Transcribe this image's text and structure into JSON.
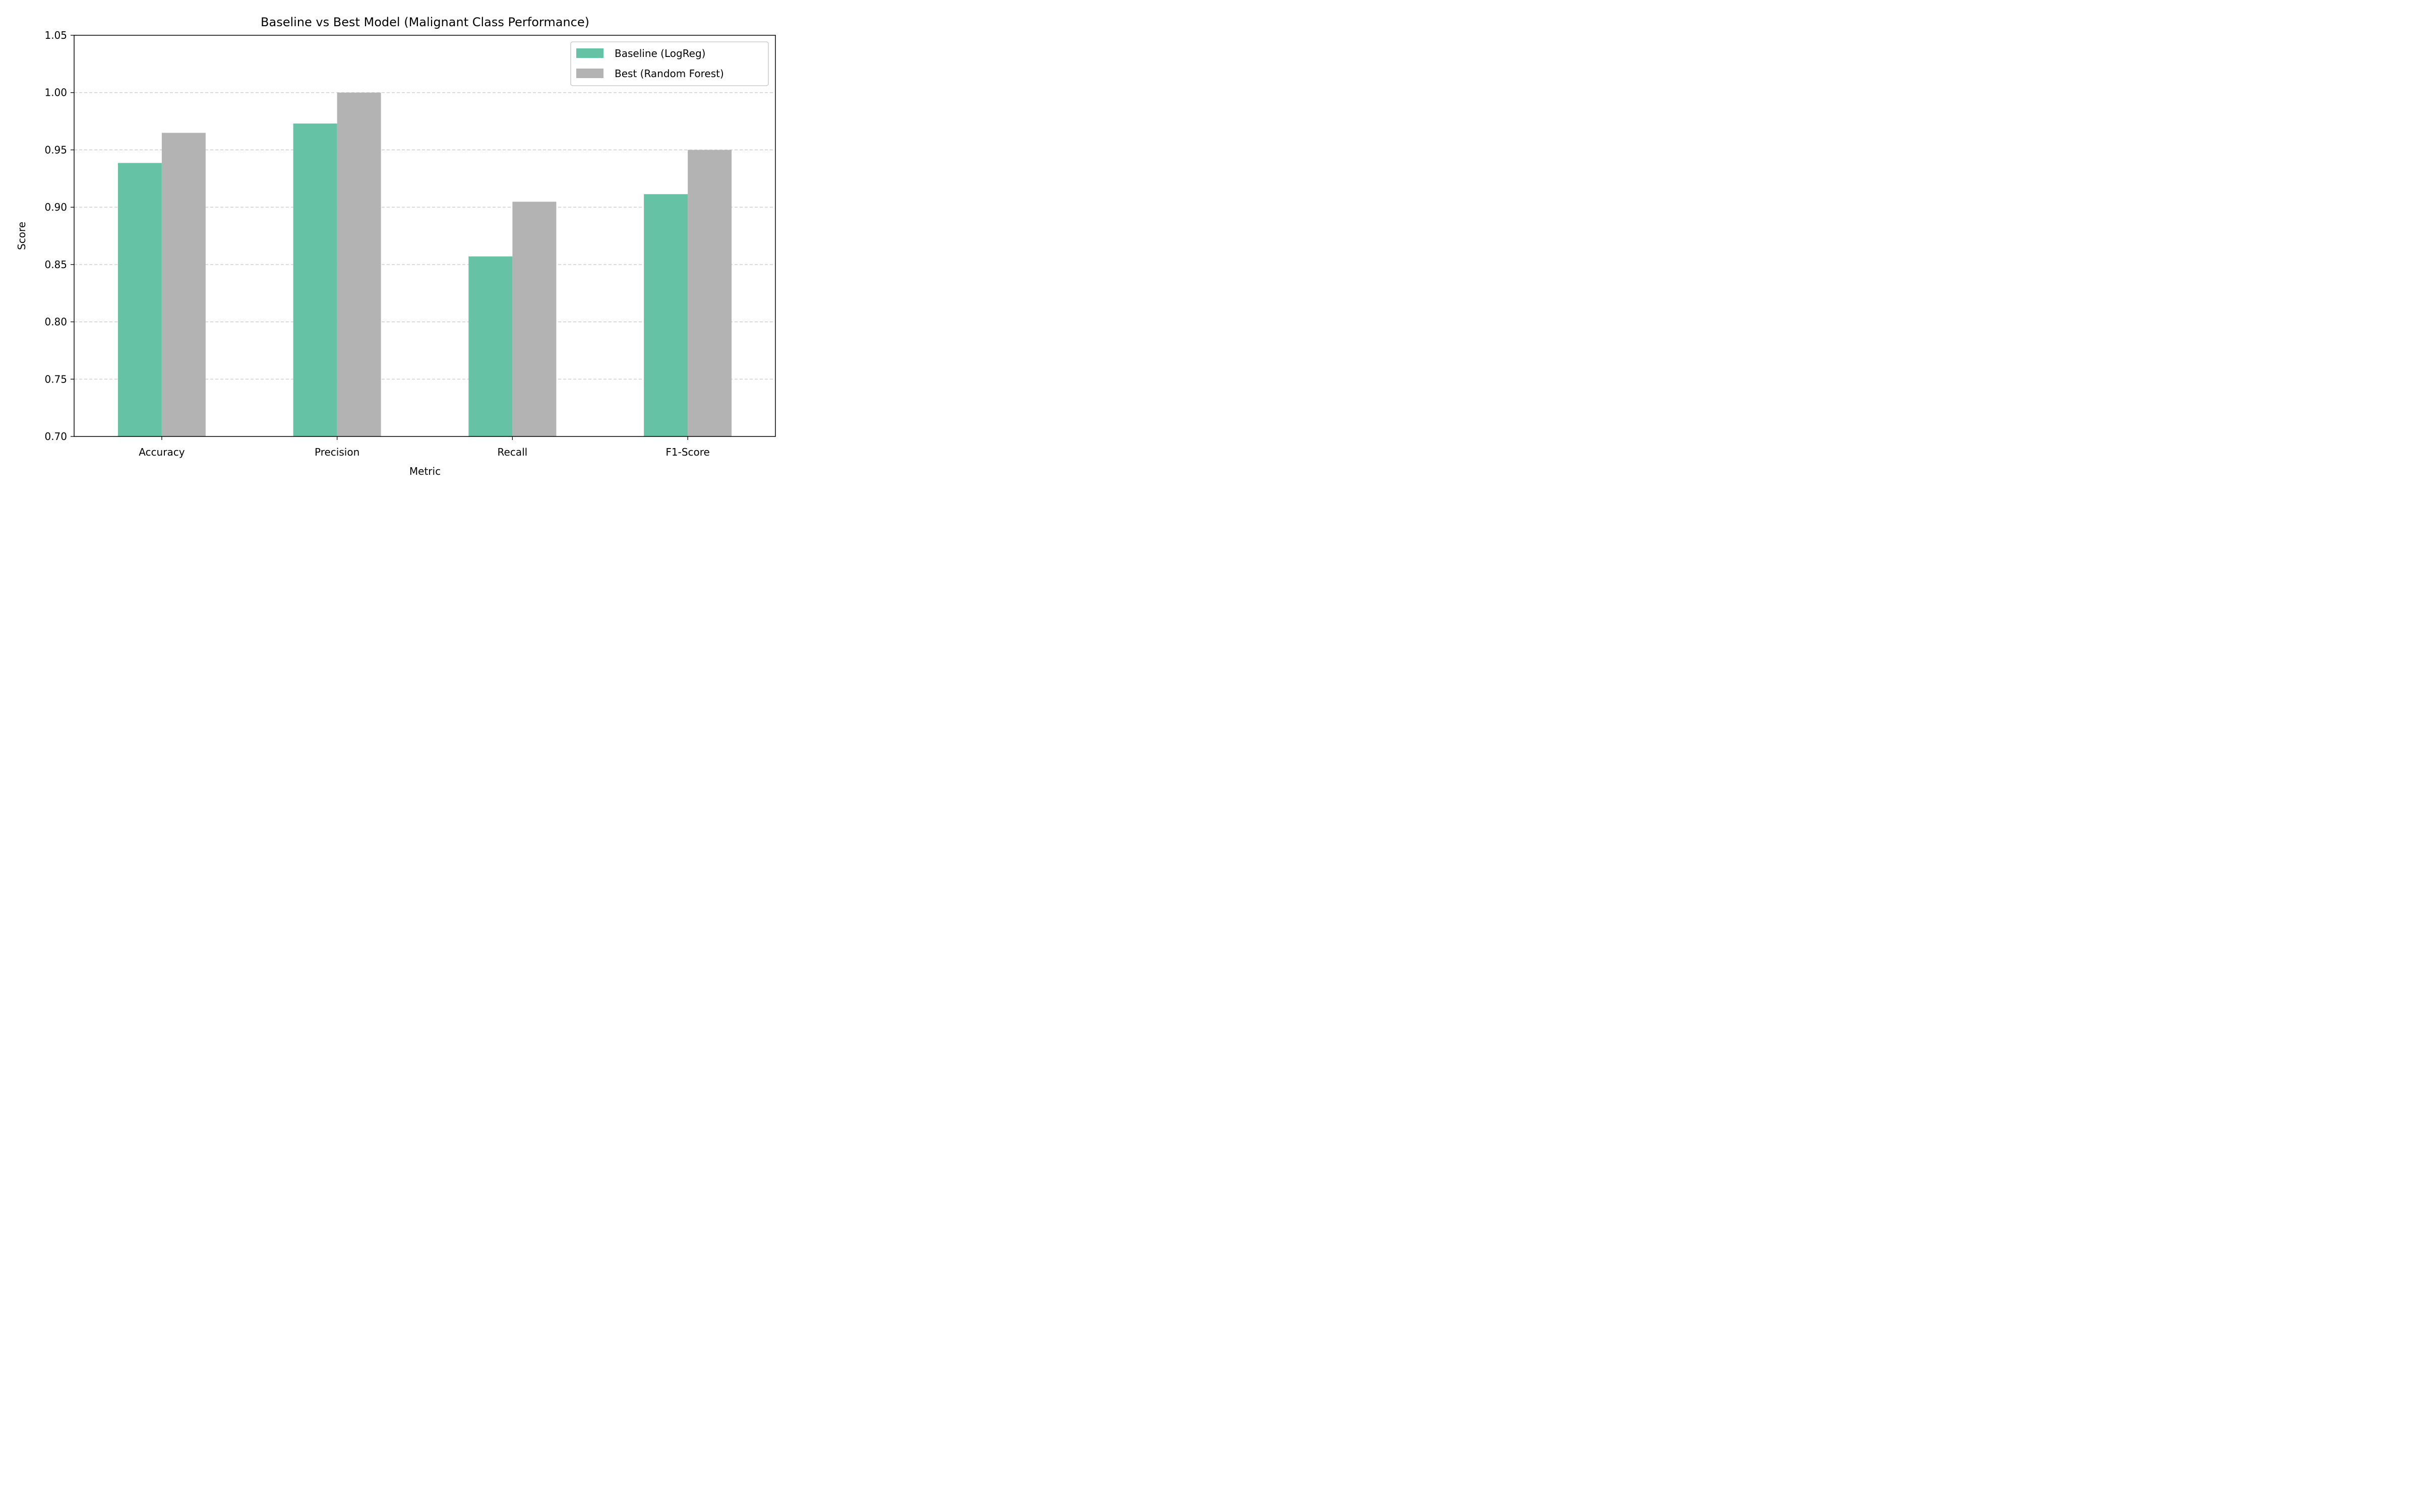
{
  "chart_data": {
    "type": "bar",
    "title": "Baseline vs Best Model (Malignant Class Performance)",
    "xlabel": "Metric",
    "ylabel": "Score",
    "categories": [
      "Accuracy",
      "Precision",
      "Recall",
      "F1-Score"
    ],
    "series": [
      {
        "name": "Baseline (LogReg)",
        "values": [
          0.9386,
          0.973,
          0.8571,
          0.9114
        ],
        "color": "#66c2a5"
      },
      {
        "name": "Best (Random Forest)",
        "values": [
          0.9649,
          1.0,
          0.9048,
          0.95
        ],
        "color": "#b3b3b3"
      }
    ],
    "ylim": [
      0.7,
      1.05
    ],
    "yticks": [
      "0.70",
      "0.75",
      "0.80",
      "0.85",
      "0.90",
      "0.95",
      "1.00",
      "1.05"
    ],
    "grid": "y-dashed",
    "legend_position": "top-right"
  }
}
